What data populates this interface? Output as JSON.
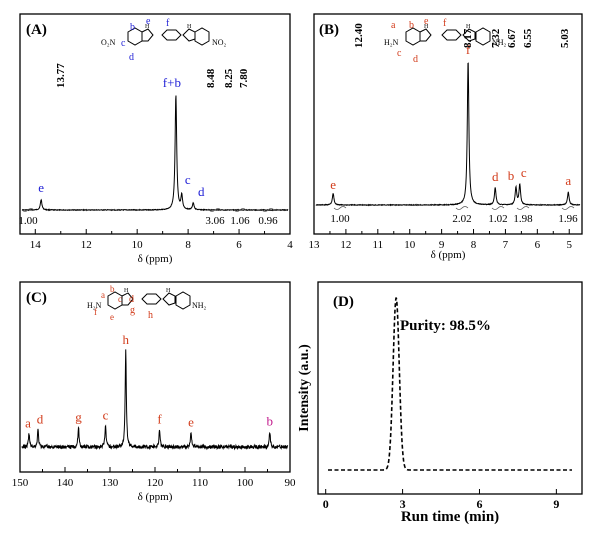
{
  "chart_data": [
    {
      "type": "line",
      "panel_label": "(A)",
      "xlabel": "δ (ppm)",
      "xlim": [
        14.6,
        4
      ],
      "x_ticks": [
        "14",
        "12",
        "10",
        "8",
        "6",
        "4"
      ],
      "peak_position_labels": [
        "13.77",
        "8.48",
        "8.25",
        "7.80"
      ],
      "peaks": [
        {
          "x": 13.77,
          "height": 0.09,
          "label": "e",
          "label_color": "#1f1fd6"
        },
        {
          "x": 8.48,
          "height": 1.0,
          "label": "f+b",
          "label_color": "#1f1fd6"
        },
        {
          "x": 8.25,
          "height": 0.12,
          "label": "c",
          "label_color": "#1f1fd6"
        },
        {
          "x": 7.8,
          "height": 0.06,
          "label": "d",
          "label_color": "#1f1fd6"
        }
      ],
      "integrals": [
        "1.00",
        "3.06",
        "1.06",
        "0.96"
      ],
      "structure_letters": [
        "e",
        "f",
        "b",
        "c",
        "d"
      ],
      "structure_groups": [
        "O₂N",
        "NO₂"
      ]
    },
    {
      "type": "line",
      "panel_label": "(B)",
      "xlabel": "δ (ppm)",
      "xlim": [
        13,
        4.6
      ],
      "x_ticks": [
        "13",
        "12",
        "11",
        "10",
        "9",
        "8",
        "7",
        "6",
        "5"
      ],
      "peak_position_labels": [
        "12.40",
        "8.17",
        "7.32",
        "6.67",
        "6.55",
        "5.03"
      ],
      "peaks": [
        {
          "x": 12.4,
          "height": 0.08,
          "label": "e",
          "label_color": "#d23b1a"
        },
        {
          "x": 8.17,
          "height": 1.0,
          "label": "f",
          "label_color": "#d23b1a"
        },
        {
          "x": 7.32,
          "height": 0.12,
          "label": "d",
          "label_color": "#d23b1a"
        },
        {
          "x": 6.67,
          "height": 0.12,
          "label": "b",
          "label_color": "#d23b1a"
        },
        {
          "x": 6.55,
          "height": 0.14,
          "label": "c",
          "label_color": "#d23b1a"
        },
        {
          "x": 5.03,
          "height": 0.09,
          "label": "a",
          "label_color": "#d23b1a"
        }
      ],
      "integrals": [
        "1.00",
        "2.02",
        "1.02",
        "1.98",
        "1.96"
      ],
      "structure_letters": [
        "a",
        "b",
        "e",
        "f",
        "c",
        "d"
      ],
      "structure_groups": [
        "H₂N",
        "NH₂"
      ]
    },
    {
      "type": "line",
      "panel_label": "(C)",
      "xlabel": "δ (ppm)",
      "xlim": [
        150,
        90
      ],
      "x_ticks": [
        "150",
        "140",
        "130",
        "120",
        "110",
        "100",
        "90"
      ],
      "peaks": [
        {
          "x": 148.0,
          "height": 0.14,
          "label": "a",
          "label_color": "#d23b1a"
        },
        {
          "x": 146.0,
          "height": 0.18,
          "label": "d",
          "label_color": "#d23b1a"
        },
        {
          "x": 137.0,
          "height": 0.2,
          "label": "g",
          "label_color": "#d23b1a"
        },
        {
          "x": 131.0,
          "height": 0.22,
          "label": "c",
          "label_color": "#d23b1a"
        },
        {
          "x": 126.5,
          "height": 1.0,
          "label": "h",
          "label_color": "#d23b1a"
        },
        {
          "x": 119.0,
          "height": 0.18,
          "label": "f",
          "label_color": "#d23b1a"
        },
        {
          "x": 112.0,
          "height": 0.15,
          "label": "e",
          "label_color": "#d23b1a"
        },
        {
          "x": 94.5,
          "height": 0.16,
          "label": "b",
          "label_color": "#c2188b"
        }
      ],
      "structure_letters": [
        "a",
        "b",
        "c",
        "d",
        "f",
        "e",
        "g",
        "h"
      ],
      "structure_groups": [
        "H₂N",
        "NH₂"
      ]
    },
    {
      "type": "line",
      "panel_label": "(D)",
      "xlabel": "Run time (min)",
      "ylabel": "Intensity (a.u.)",
      "xlim": [
        -0.3,
        10
      ],
      "x_ticks": [
        "0",
        "3",
        "6",
        "9"
      ],
      "annotation": "Purity: 98.5%",
      "line_style": "dashed",
      "peaks": [
        {
          "x": 2.75,
          "height": 1.0
        }
      ]
    }
  ],
  "colors": {
    "axis": "#000000",
    "blue_labels": "#1f1fd6",
    "red_labels": "#d23b1a",
    "magenta_label": "#c2188b"
  }
}
